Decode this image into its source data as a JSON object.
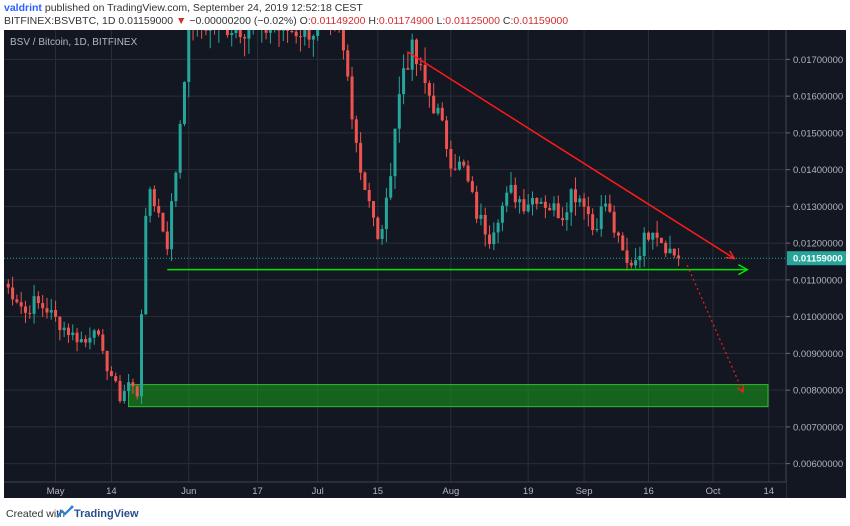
{
  "header": {
    "author": "valdrint",
    "published_text": "published on TradingView.com, September 24, 2019 12:52:18 CEST",
    "symbol": "BITFINEX:BSVBTC, 1D",
    "last_price": "0.01159000",
    "change_arrow": "▼",
    "change": "−0.00000200 (−0.02%)",
    "o_label": "O:",
    "o_value": "0.01149200",
    "h_label": "H:",
    "h_value": "0.01174900",
    "l_label": "L:",
    "l_value": "0.01125000",
    "c_label": "C:",
    "c_value": "0.01159000"
  },
  "footer": {
    "created_with": "Created with",
    "brand": "TradingView"
  },
  "chart_data": {
    "type": "candlestick",
    "title": "BSV / Bitcoin, 1D, BITFINEX",
    "ylim": [
      0.0055,
      0.0178
    ],
    "y_ticks": [
      "0.01700000",
      "0.01600000",
      "0.01500000",
      "0.01400000",
      "0.01300000",
      "0.01200000",
      "0.01100000",
      "0.01000000",
      "0.00900000",
      "0.00800000",
      "0.00700000",
      "0.00600000"
    ],
    "x_start": "2019-04-19",
    "x_end": "2019-10-18",
    "x_ticks": [
      {
        "date": "2019-05-01",
        "label": "May"
      },
      {
        "date": "2019-05-14",
        "label": "14"
      },
      {
        "date": "2019-06-01",
        "label": "Jun"
      },
      {
        "date": "2019-06-17",
        "label": "17"
      },
      {
        "date": "2019-07-01",
        "label": "Jul"
      },
      {
        "date": "2019-07-15",
        "label": "15"
      },
      {
        "date": "2019-08-01",
        "label": "Aug"
      },
      {
        "date": "2019-08-19",
        "label": "19"
      },
      {
        "date": "2019-09-01",
        "label": "Sep"
      },
      {
        "date": "2019-09-16",
        "label": "16"
      },
      {
        "date": "2019-10-01",
        "label": "Oct"
      },
      {
        "date": "2019-10-14",
        "label": "14"
      }
    ],
    "last_price_label": "0.01159000",
    "colors": {
      "background": "#131722",
      "up": "#26a69a",
      "down": "#ef5350",
      "grid": "#2a2e39",
      "support": "#00e600",
      "zone": "#17a318",
      "trendline": "#ff1a1a",
      "last_price": "#26a69a",
      "text": "#b2b5be"
    },
    "closes": [
      {
        "date": "2019-04-19",
        "close": 0.0109
      },
      {
        "date": "2019-04-22",
        "close": 0.0105
      },
      {
        "date": "2019-04-24",
        "close": 0.0101
      },
      {
        "date": "2019-04-26",
        "close": 0.0104
      },
      {
        "date": "2019-04-29",
        "close": 0.0102
      },
      {
        "date": "2019-05-02",
        "close": 0.0098
      },
      {
        "date": "2019-05-05",
        "close": 0.0095
      },
      {
        "date": "2019-05-08",
        "close": 0.0093
      },
      {
        "date": "2019-05-10",
        "close": 0.0098
      },
      {
        "date": "2019-05-12",
        "close": 0.0089
      },
      {
        "date": "2019-05-14",
        "close": 0.0084
      },
      {
        "date": "2019-05-16",
        "close": 0.0078
      },
      {
        "date": "2019-05-18",
        "close": 0.0082
      },
      {
        "date": "2019-05-20",
        "close": 0.0079
      },
      {
        "date": "2019-05-22",
        "close": 0.0125
      },
      {
        "date": "2019-05-23",
        "close": 0.0135
      },
      {
        "date": "2019-05-25",
        "close": 0.0128
      },
      {
        "date": "2019-05-27",
        "close": 0.012
      },
      {
        "date": "2019-05-29",
        "close": 0.014
      },
      {
        "date": "2019-06-01",
        "close": 0.018
      },
      {
        "date": "2019-06-25",
        "close": 0.0178
      },
      {
        "date": "2019-07-06",
        "close": 0.0178
      },
      {
        "date": "2019-07-08",
        "close": 0.0165
      },
      {
        "date": "2019-07-11",
        "close": 0.014
      },
      {
        "date": "2019-07-13",
        "close": 0.0132
      },
      {
        "date": "2019-07-15",
        "close": 0.012
      },
      {
        "date": "2019-07-17",
        "close": 0.013
      },
      {
        "date": "2019-07-19",
        "close": 0.0152
      },
      {
        "date": "2019-07-21",
        "close": 0.0168
      },
      {
        "date": "2019-07-23",
        "close": 0.0172
      },
      {
        "date": "2019-07-26",
        "close": 0.0163
      },
      {
        "date": "2019-07-29",
        "close": 0.0155
      },
      {
        "date": "2019-08-01",
        "close": 0.0143
      },
      {
        "date": "2019-08-04",
        "close": 0.014
      },
      {
        "date": "2019-08-07",
        "close": 0.0128
      },
      {
        "date": "2019-08-10",
        "close": 0.0122
      },
      {
        "date": "2019-08-12",
        "close": 0.0128
      },
      {
        "date": "2019-08-15",
        "close": 0.0134
      },
      {
        "date": "2019-08-18",
        "close": 0.0131
      },
      {
        "date": "2019-08-21",
        "close": 0.0133
      },
      {
        "date": "2019-08-24",
        "close": 0.013
      },
      {
        "date": "2019-08-27",
        "close": 0.0128
      },
      {
        "date": "2019-08-29",
        "close": 0.0134
      },
      {
        "date": "2019-09-01",
        "close": 0.0132
      },
      {
        "date": "2019-09-03",
        "close": 0.0124
      },
      {
        "date": "2019-09-06",
        "close": 0.0131
      },
      {
        "date": "2019-09-09",
        "close": 0.012
      },
      {
        "date": "2019-09-11",
        "close": 0.0114
      },
      {
        "date": "2019-09-13",
        "close": 0.0116
      },
      {
        "date": "2019-09-15",
        "close": 0.0121
      },
      {
        "date": "2019-09-17",
        "close": 0.0125
      },
      {
        "date": "2019-09-19",
        "close": 0.0121
      },
      {
        "date": "2019-09-21",
        "close": 0.0118
      },
      {
        "date": "2019-09-23",
        "close": 0.01159
      }
    ]
  }
}
